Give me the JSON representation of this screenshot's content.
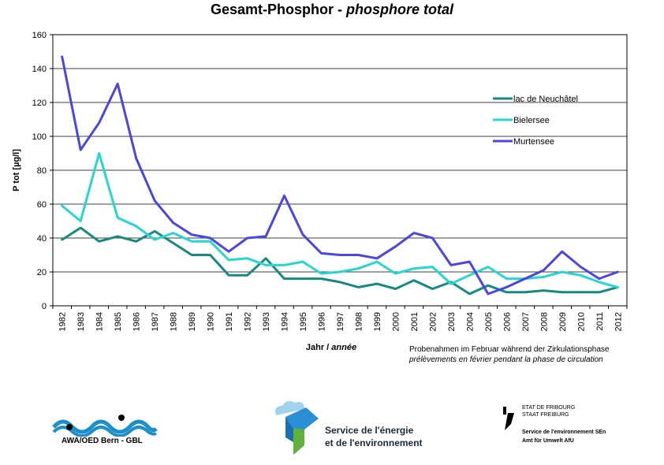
{
  "title_main": "Gesamt-Phosphor - ",
  "title_sub": "phosphore total",
  "chart_data": {
    "type": "line",
    "title": "Gesamt-Phosphor - phosphore total",
    "ylabel": "P tot [µg/l]",
    "xlabel_de": "Jahr / ",
    "xlabel_fr": "année",
    "ylim": [
      0,
      160
    ],
    "yticks": [
      0,
      20,
      40,
      60,
      80,
      100,
      120,
      140,
      160
    ],
    "grid": "horizontal",
    "legend_position": "right",
    "x": [
      "1982",
      "1983",
      "1984",
      "1985",
      "1986",
      "1987",
      "1988",
      "1989",
      "1990",
      "1991",
      "1992",
      "1993",
      "1994",
      "1995",
      "1996",
      "1997",
      "1998",
      "1999",
      "2000",
      "2001",
      "2002",
      "2003",
      "2004",
      "2005",
      "2006",
      "2007",
      "2008",
      "2009",
      "2010",
      "2011",
      "2012"
    ],
    "series": [
      {
        "name": "lac de Neuchâtel",
        "color": "#178a80",
        "values": [
          39,
          46,
          38,
          41,
          38,
          44,
          37,
          30,
          30,
          18,
          18,
          28,
          16,
          16,
          16,
          14,
          11,
          13,
          10,
          15,
          10,
          14,
          7,
          12,
          8,
          8,
          9,
          8,
          8,
          8,
          11
        ]
      },
      {
        "name": "Bielersee",
        "color": "#26d6d0",
        "values": [
          59,
          50,
          90,
          52,
          47,
          39,
          43,
          38,
          38,
          27,
          28,
          24,
          24,
          26,
          19,
          20,
          22,
          26,
          19,
          22,
          23,
          13,
          18,
          23,
          16,
          16,
          17,
          20,
          18,
          14,
          11
        ]
      },
      {
        "name": "Murtensee",
        "color": "#4b45e4",
        "values": [
          147,
          92,
          108,
          131,
          87,
          62,
          49,
          42,
          40,
          32,
          40,
          41,
          65,
          42,
          31,
          30,
          30,
          28,
          35,
          43,
          40,
          24,
          26,
          7,
          11,
          16,
          21,
          32,
          23,
          16,
          20
        ]
      }
    ]
  },
  "note_de": "Probenahmen im Februar während der Zirkulationsphase",
  "note_fr": "prélèvements en février pendant la phase de circulation",
  "logos": {
    "awa_text": "AWA/OED Bern -  GBL",
    "sen_line1": "Service de l'énergie",
    "sen_line2": "et de l'environnement",
    "fr_line1": "ETAT DE FRIBOURG",
    "fr_line2": "STAAT FREIBURG",
    "fr_line3": "Service de l'environnement SEn",
    "fr_line4": "Amt für Umwelt AfU"
  }
}
